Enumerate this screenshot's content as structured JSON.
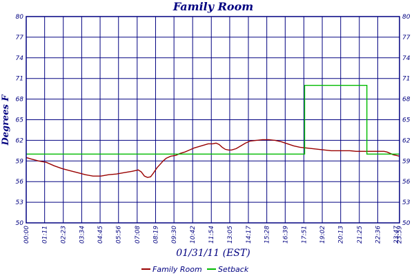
{
  "chart_data": {
    "type": "line",
    "title": "Family Room",
    "xlabel": "01/31/11 (EST)",
    "ylabel": "Degrees F",
    "ylim": [
      50,
      80
    ],
    "y_ticks": [
      50,
      53,
      56,
      59,
      62,
      65,
      68,
      71,
      74,
      77,
      80
    ],
    "xlim_hours": [
      0,
      24
    ],
    "x_tick_labels": [
      "00:00",
      "01:11",
      "02:23",
      "03:34",
      "04:45",
      "05:56",
      "07:08",
      "08:19",
      "09:30",
      "10:42",
      "11:54",
      "13:05",
      "14:17",
      "15:28",
      "16:39",
      "17:51",
      "19:02",
      "20:13",
      "21:25",
      "22:36",
      "23:47",
      "23:59"
    ],
    "x_tick_hours": [
      0,
      1.1833,
      2.3833,
      3.5667,
      4.75,
      5.9333,
      7.1333,
      8.3167,
      9.5,
      10.7,
      11.9,
      13.0833,
      14.2833,
      15.4667,
      16.65,
      17.85,
      19.0333,
      20.2167,
      21.4167,
      22.6,
      23.7833,
      23.9833
    ],
    "grid": true,
    "legend_position": "bottom",
    "series": [
      {
        "name": "Family Room",
        "color": "#990000",
        "x": [
          0,
          0.3,
          0.8,
          1.3,
          1.8,
          2.3,
          2.8,
          3.3,
          3.8,
          4.3,
          4.8,
          5.3,
          5.8,
          6.3,
          6.8,
          7.0,
          7.2,
          7.4,
          7.6,
          7.8,
          8.0,
          8.2,
          8.4,
          8.6,
          8.8,
          9.0,
          9.3,
          9.6,
          9.9,
          10.2,
          10.5,
          10.8,
          11.1,
          11.4,
          11.7,
          12.0,
          12.2,
          12.4,
          12.6,
          12.8,
          13.0,
          13.2,
          13.5,
          13.8,
          14.1,
          14.4,
          14.8,
          15.2,
          15.6,
          16.0,
          16.4,
          16.8,
          17.2,
          17.6,
          18.0,
          18.4,
          18.8,
          19.2,
          19.6,
          20.0,
          20.4,
          20.8,
          21.2,
          21.6,
          22.0,
          22.4,
          22.8,
          23.0,
          23.2,
          23.4,
          23.6,
          23.8,
          23.99
        ],
        "y": [
          59.5,
          59.3,
          59.0,
          58.8,
          58.3,
          57.9,
          57.6,
          57.3,
          57.0,
          56.8,
          56.8,
          57.0,
          57.1,
          57.3,
          57.5,
          57.6,
          57.7,
          57.4,
          56.8,
          56.6,
          56.7,
          57.3,
          58.0,
          58.5,
          59.0,
          59.4,
          59.7,
          59.8,
          60.1,
          60.3,
          60.6,
          60.9,
          61.1,
          61.3,
          61.5,
          61.5,
          61.6,
          61.4,
          61.0,
          60.7,
          60.6,
          60.6,
          60.8,
          61.2,
          61.6,
          61.9,
          62.0,
          62.1,
          62.1,
          62.0,
          61.8,
          61.5,
          61.2,
          61.0,
          60.9,
          60.8,
          60.7,
          60.6,
          60.5,
          60.5,
          60.5,
          60.5,
          60.4,
          60.4,
          60.4,
          60.4,
          60.4,
          60.4,
          60.3,
          60.1,
          59.9,
          59.8,
          59.7
        ]
      },
      {
        "name": "Setback",
        "color": "#00bb00",
        "x": [
          0,
          17.9,
          17.9,
          21.9,
          21.9,
          23.99
        ],
        "y": [
          60,
          60,
          70,
          70,
          60,
          60
        ]
      }
    ]
  }
}
